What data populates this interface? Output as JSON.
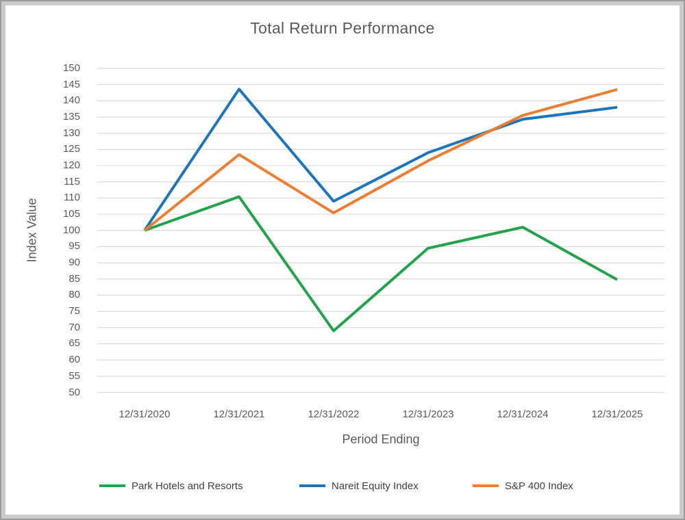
{
  "chart_data": {
    "type": "line",
    "title": "Total Return Performance",
    "xlabel": "Period Ending",
    "ylabel": "Index Value",
    "categories": [
      "12/31/2020",
      "12/31/2021",
      "12/31/2022",
      "12/31/2023",
      "12/31/2024",
      "12/31/2025"
    ],
    "series": [
      {
        "name": "Park Hotels and Resorts",
        "color": "#22A24B",
        "values": [
          100,
          110.4,
          69,
          94.5,
          101,
          84.8
        ]
      },
      {
        "name": "Nareit Equity Index",
        "color": "#1B74BC",
        "values": [
          100,
          143.6,
          109,
          124,
          134.3,
          138
        ]
      },
      {
        "name": "S&P 400 Index",
        "color": "#ED7D31",
        "values": [
          100,
          123.4,
          105.4,
          121.5,
          135.5,
          143.5
        ]
      }
    ],
    "ylim": [
      50,
      150
    ],
    "ytick_step": 5,
    "grid": "horizontal",
    "gridline_color": "#D9D9D9",
    "text_color": "#595959",
    "legend_position": "bottom"
  }
}
